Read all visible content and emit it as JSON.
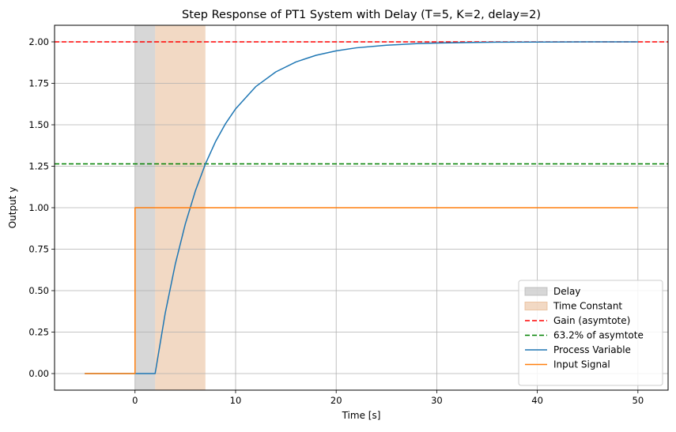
{
  "chart_data": {
    "type": "line",
    "title": "Step Response of PT1 System with Delay (T=5, K=2, delay=2)",
    "xlabel": "Time [s]",
    "ylabel": "Output y",
    "xlim": [
      -8.0,
      53.0
    ],
    "ylim": [
      -0.1,
      2.1
    ],
    "xticks": [
      0,
      10,
      20,
      30,
      40,
      50
    ],
    "yticks": [
      0.0,
      0.25,
      0.5,
      0.75,
      1.0,
      1.25,
      1.5,
      1.75,
      2.0
    ],
    "xtick_labels": [
      "0",
      "10",
      "20",
      "30",
      "40",
      "50"
    ],
    "ytick_labels": [
      "0.00",
      "0.25",
      "0.50",
      "0.75",
      "1.00",
      "1.25",
      "1.50",
      "1.75",
      "2.00"
    ],
    "grid": true,
    "legend_position": "bottom-right",
    "params": {
      "T": 5,
      "K": 2,
      "delay": 2
    },
    "spans": [
      {
        "name": "Delay",
        "x_start": 0,
        "x_end": 2,
        "color": "#b0b0b0"
      },
      {
        "name": "Time Constant",
        "x_start": 2,
        "x_end": 7,
        "color": "#e6b48a"
      }
    ],
    "hlines": [
      {
        "name": "Gain (asymtote)",
        "y": 2.0,
        "color": "#ff0000"
      },
      {
        "name": "63.2% of asymtote",
        "y": 1.264,
        "color": "#008000"
      }
    ],
    "series": [
      {
        "name": "Process Variable",
        "color": "#1f77b4",
        "x": [
          -5,
          0,
          2,
          3,
          4,
          5,
          6,
          7,
          8,
          9,
          10,
          12,
          14,
          16,
          18,
          20,
          22,
          25,
          28,
          30,
          33,
          36,
          40,
          45,
          50
        ],
        "y": [
          0,
          0,
          0,
          0.363,
          0.659,
          0.902,
          1.101,
          1.264,
          1.398,
          1.507,
          1.596,
          1.73,
          1.819,
          1.879,
          1.919,
          1.946,
          1.964,
          1.98,
          1.989,
          1.993,
          1.996,
          1.998,
          1.999,
          2.0,
          2.0
        ]
      },
      {
        "name": "Input Signal",
        "color": "#ff7f0e",
        "x": [
          -5,
          0,
          0,
          50
        ],
        "y": [
          0,
          0,
          1,
          1
        ]
      }
    ]
  }
}
